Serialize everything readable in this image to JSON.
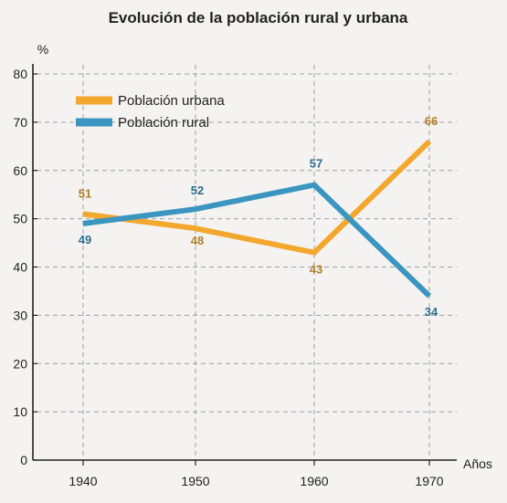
{
  "colors": {
    "urbana": "#f3a72c",
    "rural": "#3a95c0",
    "urbana_label": "#b0802b",
    "rural_label": "#2f6f8c",
    "grid": "#9aa0a6",
    "axis": "#222222"
  },
  "chart_data": {
    "type": "line",
    "title": "Evolución de la población rural y urbana",
    "ylabel": "%",
    "xlabel": "Años",
    "x": [
      1940,
      1950,
      1960,
      1970
    ],
    "x_tick_labels": [
      "1940",
      "1950",
      "1960",
      "1970"
    ],
    "y_ticks": [
      0,
      10,
      20,
      30,
      40,
      50,
      60,
      70,
      80
    ],
    "ylim": [
      0,
      80
    ],
    "grid": true,
    "legend_position": "top-left",
    "series": [
      {
        "name": "Población urbana",
        "values": [
          51,
          48,
          43,
          66
        ],
        "labels": [
          "51",
          "48",
          "43",
          "66"
        ]
      },
      {
        "name": "Población rural",
        "values": [
          49,
          52,
          57,
          34
        ],
        "labels": [
          "49",
          "52",
          "57",
          "34"
        ]
      }
    ]
  }
}
